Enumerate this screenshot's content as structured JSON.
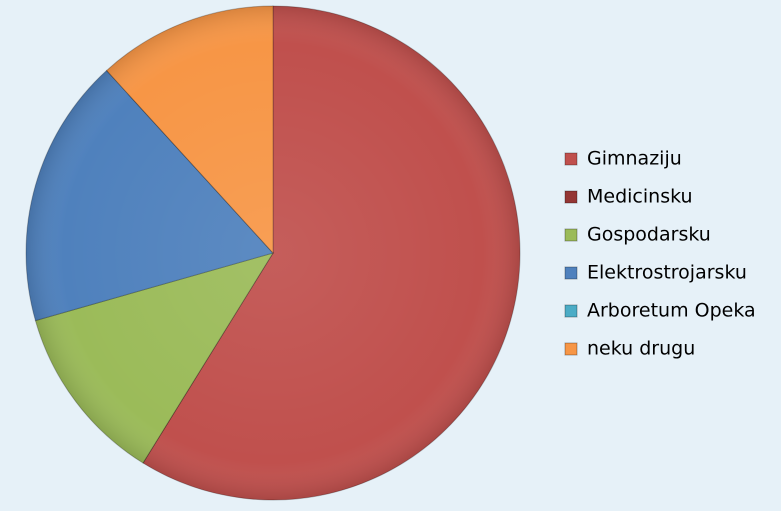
{
  "chart_data": {
    "type": "pie",
    "categories": [
      "Gimnaziju",
      "Medicinsku",
      "Gospodarsku",
      "Elektrostrojarsku",
      "Arboretum Opeka",
      "neku drugu"
    ],
    "values": [
      10,
      0,
      2,
      3,
      0,
      2
    ],
    "colors": [
      "#c0504d",
      "#943634",
      "#9bbb59",
      "#4f81bd",
      "#4bacc6",
      "#f79646"
    ]
  }
}
